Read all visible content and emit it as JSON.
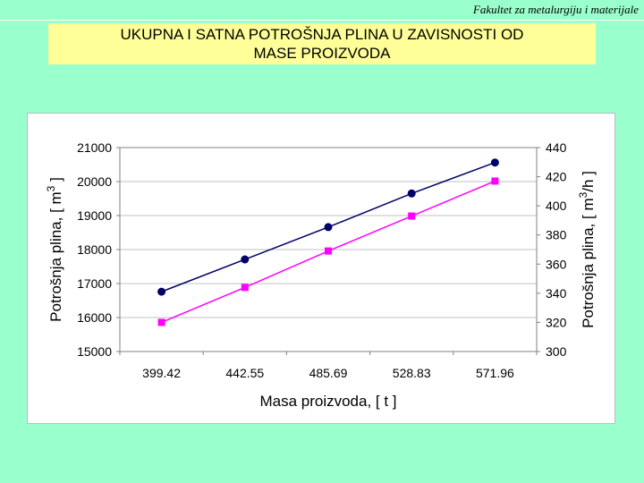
{
  "header": {
    "institution": "Fakultet za metalurgiju i materijale"
  },
  "slide": {
    "title_line1": "UKUPNA I SATNA POTROŠNJA PLINA U ZAVISNOSTI OD",
    "title_line2": "MASE PROIZVODA"
  },
  "chart_data": {
    "type": "line",
    "categories": [
      "399.42",
      "442.55",
      "485.69",
      "528.83",
      "571.96"
    ],
    "xlabel": "Masa proizvoda, [ t ]",
    "ylabel_left": {
      "text": "Potrošnja plina, [ m",
      "sup": "3",
      "end": " ]"
    },
    "ylabel_right": {
      "text": "Potrošnja plina, [ m",
      "sup": "3",
      "end": "/h ]"
    },
    "ylim_left": [
      15000,
      21000
    ],
    "yticks_left": [
      "15000",
      "16000",
      "17000",
      "18000",
      "19000",
      "20000",
      "21000"
    ],
    "ylim_right": [
      300,
      440
    ],
    "yticks_right": [
      "300",
      "320",
      "340",
      "360",
      "380",
      "400",
      "420",
      "440"
    ],
    "grid": true,
    "series": [
      {
        "axis": "left",
        "marker": "circle",
        "color": "#000066",
        "values": [
          16760,
          17710,
          18660,
          19650,
          20560
        ]
      },
      {
        "axis": "right",
        "marker": "square",
        "color": "#ff00ff",
        "values": [
          320,
          344,
          369,
          393,
          417
        ]
      }
    ]
  }
}
